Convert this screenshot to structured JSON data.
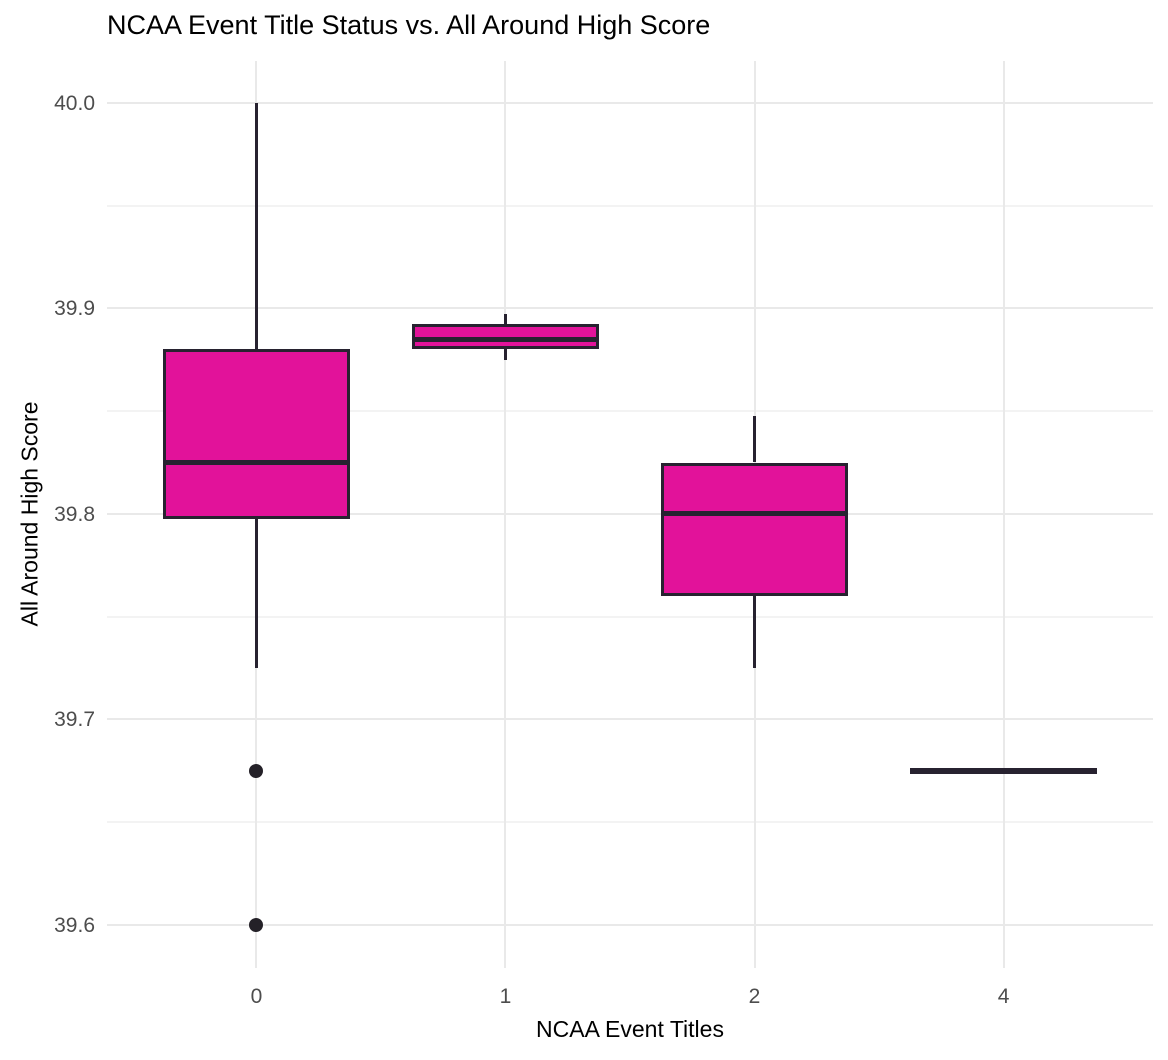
{
  "chart_data": {
    "type": "boxplot",
    "title": "NCAA Event Title Status vs. All Around High Score",
    "xlabel": "NCAA Event Titles",
    "ylabel": "All Around High Score",
    "categories": [
      "0",
      "1",
      "2",
      "4"
    ],
    "y_ticks_major": [
      40.0,
      39.9,
      39.8,
      39.7,
      39.6
    ],
    "y_tick_labels": [
      "40.0",
      "39.9",
      "39.8",
      "39.7",
      "39.6"
    ],
    "y_ticks_minor": [
      39.95,
      39.85,
      39.75,
      39.65
    ],
    "ylim": [
      39.579,
      40.0204
    ],
    "grid": "major-and-minor-horizontal, major-vertical-at-categories",
    "legend": "none",
    "boxes": [
      {
        "category": "0",
        "whisker_low": 39.725,
        "q1": 39.7975,
        "median": 39.825,
        "q3": 39.88,
        "whisker_high": 40.0,
        "outliers": [
          39.675,
          39.6
        ]
      },
      {
        "category": "1",
        "whisker_low": 39.875,
        "q1": 39.88,
        "median": 39.885,
        "q3": 39.8925,
        "whisker_high": 39.8975,
        "outliers": []
      },
      {
        "category": "2",
        "whisker_low": 39.725,
        "q1": 39.76,
        "median": 39.8,
        "q3": 39.825,
        "whisker_high": 39.8475,
        "outliers": []
      },
      {
        "category": "4",
        "whisker_low": 39.675,
        "q1": 39.675,
        "median": 39.675,
        "q3": 39.675,
        "whisker_high": 39.675,
        "outliers": []
      }
    ],
    "colors": {
      "box_fill": "#E2129A",
      "box_stroke": "#272230",
      "outlier": "#242128",
      "grid_major": "#E9E9E9",
      "grid_minor": "#F3F3F3",
      "tick_label": "#4D4D4D",
      "title_text": "#000000",
      "background": "#FFFFFF"
    }
  }
}
